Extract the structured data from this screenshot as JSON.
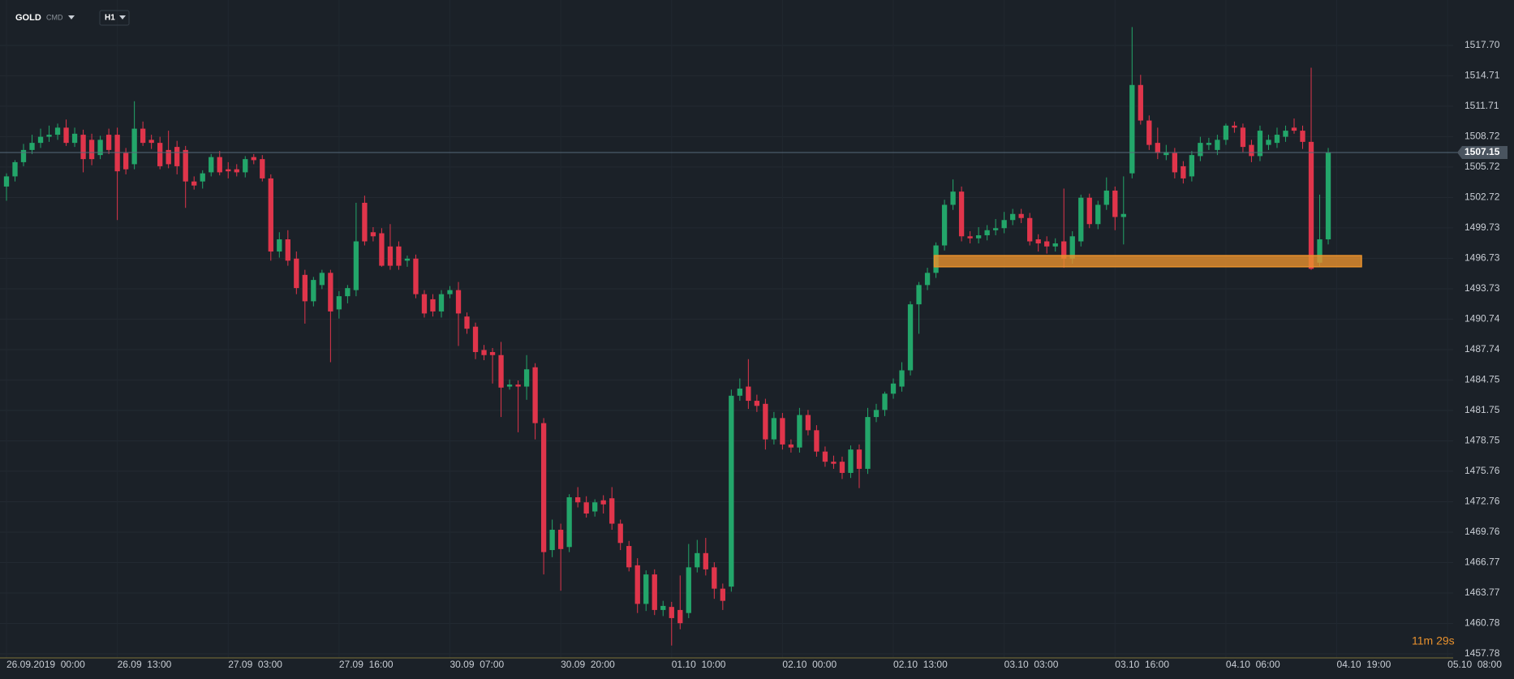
{
  "chart_data": {
    "type": "candlestick",
    "symbol": "GOLD",
    "instrument_type": "CMD",
    "timeframe": "H1",
    "countdown": "11m 29s",
    "up_color": "#23a66a",
    "down_color": "#e0354b",
    "last_price": 1507.15,
    "zone": {
      "xlim": [
        108.8,
        158.9
      ],
      "ylim": [
        1495.9,
        1497.0
      ],
      "color": "#e8912d"
    },
    "xlim": [
      -0.76,
      169.65
    ],
    "ylim": [
      1457.38,
      1522.17
    ],
    "grid": true,
    "xticks": [
      {
        "value": 0,
        "label": "26.09.2019  00:00"
      },
      {
        "value": 13,
        "label": "26.09  13:00"
      },
      {
        "value": 26,
        "label": "27.09  03:00"
      },
      {
        "value": 39,
        "label": "27.09  16:00"
      },
      {
        "value": 52,
        "label": "30.09  07:00"
      },
      {
        "value": 65,
        "label": "30.09  20:00"
      },
      {
        "value": 78,
        "label": "01.10  10:00"
      },
      {
        "value": 91,
        "label": "02.10  00:00"
      },
      {
        "value": 104,
        "label": "02.10  13:00"
      },
      {
        "value": 117,
        "label": "03.10  03:00"
      },
      {
        "value": 130,
        "label": "03.10  16:00"
      },
      {
        "value": 143,
        "label": "04.10  06:00"
      },
      {
        "value": 156,
        "label": "04.10  19:00"
      },
      {
        "value": 169,
        "label": "05.10  08:00"
      }
    ],
    "yticks": [
      {
        "value": 1517.7,
        "label": "1517.70"
      },
      1514.71,
      1511.71,
      1508.72,
      1505.72,
      1502.72,
      1499.73,
      1496.73,
      1493.73,
      1490.74,
      1487.74,
      1484.75,
      1481.75,
      1478.75,
      1475.76,
      1472.76,
      1469.76,
      1466.77,
      1463.77,
      1460.78,
      1457.78
    ],
    "open": [
      1503.8,
      1504.8,
      1506.2,
      1507.4,
      1508.1,
      1508.7,
      1508.9,
      1509.6,
      1508.1,
      1508.9,
      1508.4,
      1506.9,
      1508.9,
      1508.9,
      1507.1,
      1506.0,
      1509.5,
      1508.4,
      1508.1,
      1507.4,
      1507.7,
      1507.4,
      1504.3,
      1504.3,
      1505.2,
      1506.7,
      1505.5,
      1505.5,
      1505.2,
      1506.7,
      1506.5,
      1504.6,
      1497.4,
      1498.6,
      1496.7,
      1495.1,
      1492.5,
      1494.1,
      1495.3,
      1491.7,
      1493.0,
      1493.6,
      1502.2,
      1499.3,
      1499.2,
      1497.9,
      1497.9,
      1496.5,
      1496.7,
      1493.2,
      1492.7,
      1491.5,
      1493.2,
      1493.6,
      1491.0,
      1490.0,
      1487.7,
      1487.5,
      1487.2,
      1484.1,
      1484.3,
      1484.1,
      1486.0,
      1480.5,
      1468.0,
      1470.0,
      1468.3,
      1473.2,
      1472.7,
      1471.8,
      1472.9,
      1473.1,
      1470.6,
      1468.4,
      1466.5,
      1462.7,
      1465.6,
      1462.1,
      1462.4,
      1462.1,
      1461.8,
      1466.3,
      1467.7,
      1466.3,
      1464.2,
      1464.4,
      1483.2,
      1484.1,
      1482.7,
      1482.4,
      1478.9,
      1481.0,
      1478.4,
      1478.1,
      1481.3,
      1479.8,
      1477.7,
      1476.7,
      1476.7,
      1475.6,
      1477.9,
      1476.0,
      1481.1,
      1481.8,
      1483.4,
      1484.1,
      1485.7,
      1492.2,
      1494.1,
      1495.3,
      1498.0,
      1502.0,
      1503.3,
      1498.9,
      1498.7,
      1499.0,
      1499.5,
      1499.7,
      1500.5,
      1501.1,
      1500.7,
      1498.6,
      1498.4,
      1497.9,
      1498.4,
      1496.7,
      1498.4,
      1502.7,
      1500.1,
      1502.0,
      1503.4,
      1500.8,
      1505.1,
      1513.8,
      1510.3,
      1508.1,
      1506.9,
      1507.1,
      1505.8,
      1504.8,
      1506.8,
      1507.9,
      1507.4,
      1508.4,
      1509.8,
      1509.6,
      1507.9,
      1506.8,
      1507.9,
      1508.1,
      1508.7,
      1509.6,
      1509.3,
      1508.2,
      1496.3,
      1498.6
    ],
    "high": [
      1505.1,
      1506.4,
      1508.0,
      1508.9,
      1509.5,
      1509.8,
      1510.0,
      1510.4,
      1509.6,
      1509.4,
      1509.0,
      1508.8,
      1509.5,
      1509.6,
      1507.6,
      1512.2,
      1510.2,
      1508.9,
      1508.7,
      1509.3,
      1508.3,
      1507.8,
      1504.8,
      1505.4,
      1507.0,
      1507.3,
      1506.2,
      1506.0,
      1506.8,
      1507.0,
      1506.9,
      1505.0,
      1499.3,
      1499.5,
      1497.4,
      1495.6,
      1494.9,
      1495.6,
      1495.6,
      1493.5,
      1494.1,
      1502.2,
      1502.9,
      1499.8,
      1499.7,
      1500.1,
      1498.4,
      1497.0,
      1497.1,
      1493.6,
      1493.2,
      1493.6,
      1494.0,
      1494.4,
      1491.4,
      1490.4,
      1488.2,
      1487.9,
      1488.5,
      1484.8,
      1484.7,
      1487.2,
      1486.4,
      1481.0,
      1471.0,
      1470.6,
      1473.5,
      1474.2,
      1473.3,
      1473.0,
      1473.4,
      1474.2,
      1471.0,
      1468.9,
      1467.2,
      1466.0,
      1466.1,
      1463.0,
      1462.9,
      1465.5,
      1468.6,
      1469.0,
      1469.2,
      1466.8,
      1464.7,
      1483.8,
      1484.9,
      1486.8,
      1483.3,
      1482.9,
      1481.6,
      1481.5,
      1478.9,
      1482.0,
      1481.8,
      1480.3,
      1478.2,
      1477.3,
      1477.2,
      1478.3,
      1478.4,
      1482.0,
      1482.4,
      1483.6,
      1484.9,
      1486.5,
      1492.5,
      1494.4,
      1495.8,
      1498.3,
      1502.5,
      1504.5,
      1503.8,
      1499.4,
      1499.8,
      1500.0,
      1500.6,
      1501.3,
      1501.6,
      1501.6,
      1501.2,
      1499.1,
      1498.9,
      1498.7,
      1503.6,
      1499.4,
      1503.0,
      1503.1,
      1502.4,
      1504.7,
      1503.8,
      1504.8,
      1519.5,
      1514.8,
      1510.8,
      1509.6,
      1507.9,
      1507.6,
      1506.3,
      1507.3,
      1508.7,
      1508.6,
      1508.9,
      1510.0,
      1510.2,
      1510.0,
      1508.4,
      1509.8,
      1508.9,
      1509.6,
      1509.8,
      1510.5,
      1509.8,
      1515.5,
      1503.0,
      1507.6
    ],
    "low": [
      1502.4,
      1504.3,
      1505.8,
      1507.0,
      1507.6,
      1508.2,
      1508.4,
      1507.8,
      1507.7,
      1505.2,
      1505.9,
      1506.5,
      1507.0,
      1500.5,
      1505.0,
      1505.5,
      1507.8,
      1507.5,
      1505.5,
      1505.6,
      1505.0,
      1501.7,
      1503.5,
      1503.6,
      1504.8,
      1504.9,
      1504.6,
      1504.8,
      1504.7,
      1506.0,
      1504.3,
      1496.5,
      1496.8,
      1496.0,
      1493.2,
      1490.3,
      1492.0,
      1493.7,
      1486.5,
      1490.8,
      1492.3,
      1493.0,
      1498.0,
      1498.4,
      1495.9,
      1495.6,
      1495.6,
      1495.9,
      1492.8,
      1490.9,
      1491.0,
      1490.9,
      1492.8,
      1488.1,
      1489.3,
      1486.8,
      1486.7,
      1484.4,
      1481.1,
      1483.8,
      1479.6,
      1482.8,
      1478.9,
      1465.6,
      1467.3,
      1464.0,
      1467.8,
      1472.2,
      1471.2,
      1471.3,
      1471.6,
      1470.0,
      1468.0,
      1465.9,
      1461.8,
      1462.0,
      1461.6,
      1461.5,
      1458.6,
      1460.2,
      1461.3,
      1465.8,
      1465.5,
      1463.2,
      1462.1,
      1463.9,
      1482.7,
      1481.9,
      1481.6,
      1477.9,
      1478.4,
      1477.9,
      1477.6,
      1477.6,
      1479.3,
      1477.2,
      1476.2,
      1476.0,
      1475.0,
      1475.1,
      1474.1,
      1475.5,
      1480.6,
      1481.2,
      1482.9,
      1483.6,
      1485.2,
      1489.3,
      1493.6,
      1494.8,
      1497.5,
      1501.5,
      1498.4,
      1498.2,
      1498.2,
      1498.5,
      1499.0,
      1499.2,
      1500.0,
      1500.2,
      1498.0,
      1497.4,
      1497.2,
      1497.4,
      1495.8,
      1496.2,
      1497.9,
      1499.7,
      1499.6,
      1501.5,
      1499.5,
      1498.1,
      1504.6,
      1509.9,
      1507.4,
      1506.5,
      1506.4,
      1504.6,
      1504.1,
      1504.3,
      1506.3,
      1507.4,
      1506.9,
      1507.9,
      1509.1,
      1507.2,
      1506.2,
      1506.3,
      1507.4,
      1507.6,
      1508.2,
      1509.0,
      1507.5,
      1495.6,
      1495.9,
      1498.1
    ],
    "close": [
      1504.8,
      1506.2,
      1507.4,
      1508.1,
      1508.7,
      1508.9,
      1509.6,
      1508.1,
      1509.0,
      1506.5,
      1506.5,
      1508.4,
      1507.4,
      1505.3,
      1505.5,
      1509.5,
      1508.1,
      1508.1,
      1505.8,
      1506.0,
      1505.8,
      1504.3,
      1503.9,
      1505.1,
      1506.7,
      1505.2,
      1505.3,
      1505.2,
      1506.5,
      1506.4,
      1504.6,
      1497.4,
      1498.6,
      1496.5,
      1493.8,
      1492.5,
      1494.6,
      1495.3,
      1491.5,
      1493.0,
      1493.8,
      1498.4,
      1498.4,
      1498.9,
      1496.0,
      1496.0,
      1496.0,
      1496.7,
      1493.2,
      1491.3,
      1491.5,
      1493.2,
      1493.6,
      1491.3,
      1489.8,
      1487.5,
      1487.2,
      1487.2,
      1484.0,
      1484.3,
      1484.1,
      1485.8,
      1480.5,
      1467.8,
      1470.0,
      1468.1,
      1473.2,
      1472.7,
      1471.6,
      1472.7,
      1472.5,
      1470.6,
      1468.7,
      1466.3,
      1462.7,
      1465.6,
      1462.1,
      1462.5,
      1461.3,
      1460.8,
      1466.3,
      1467.7,
      1466.1,
      1464.2,
      1463.0,
      1483.2,
      1483.9,
      1482.7,
      1482.2,
      1478.9,
      1481.0,
      1478.4,
      1478.1,
      1481.3,
      1479.8,
      1477.7,
      1476.7,
      1476.5,
      1475.6,
      1477.9,
      1476.0,
      1481.1,
      1481.8,
      1483.4,
      1484.4,
      1485.7,
      1492.2,
      1494.1,
      1495.3,
      1498.0,
      1502.0,
      1503.3,
      1498.9,
      1498.7,
      1499.0,
      1499.5,
      1499.7,
      1500.5,
      1501.1,
      1500.7,
      1498.4,
      1498.2,
      1497.9,
      1498.2,
      1496.7,
      1498.9,
      1502.7,
      1500.1,
      1502.0,
      1503.4,
      1500.8,
      1501.1,
      1513.8,
      1510.3,
      1507.9,
      1507.1,
      1507.2,
      1505.2,
      1504.6,
      1506.9,
      1508.1,
      1508.1,
      1508.4,
      1509.8,
      1509.6,
      1507.7,
      1506.8,
      1509.3,
      1508.4,
      1508.9,
      1509.3,
      1509.3,
      1508.2,
      1495.7,
      1498.6,
      1507.15
    ]
  }
}
